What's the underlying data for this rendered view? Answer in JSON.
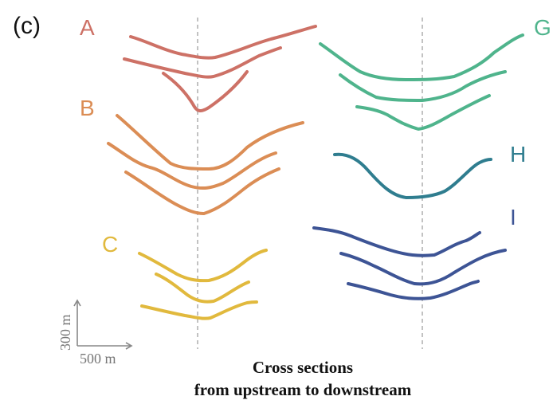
{
  "panel_label": "(c)",
  "caption": {
    "line1": "Cross sections",
    "line2": "from upstream to downstream"
  },
  "scale_bar": {
    "vertical_label": "300 m",
    "horizontal_label": "500 m"
  },
  "groups": [
    {
      "id": "A",
      "label": "A",
      "color": "#cd7166"
    },
    {
      "id": "B",
      "label": "B",
      "color": "#db8d55"
    },
    {
      "id": "C",
      "label": "C",
      "color": "#e1b93d"
    },
    {
      "id": "G",
      "label": "G",
      "color": "#4fb48c"
    },
    {
      "id": "H",
      "label": "H",
      "color": "#2f7d8f"
    },
    {
      "id": "I",
      "label": "I",
      "color": "#3d5495"
    }
  ]
}
